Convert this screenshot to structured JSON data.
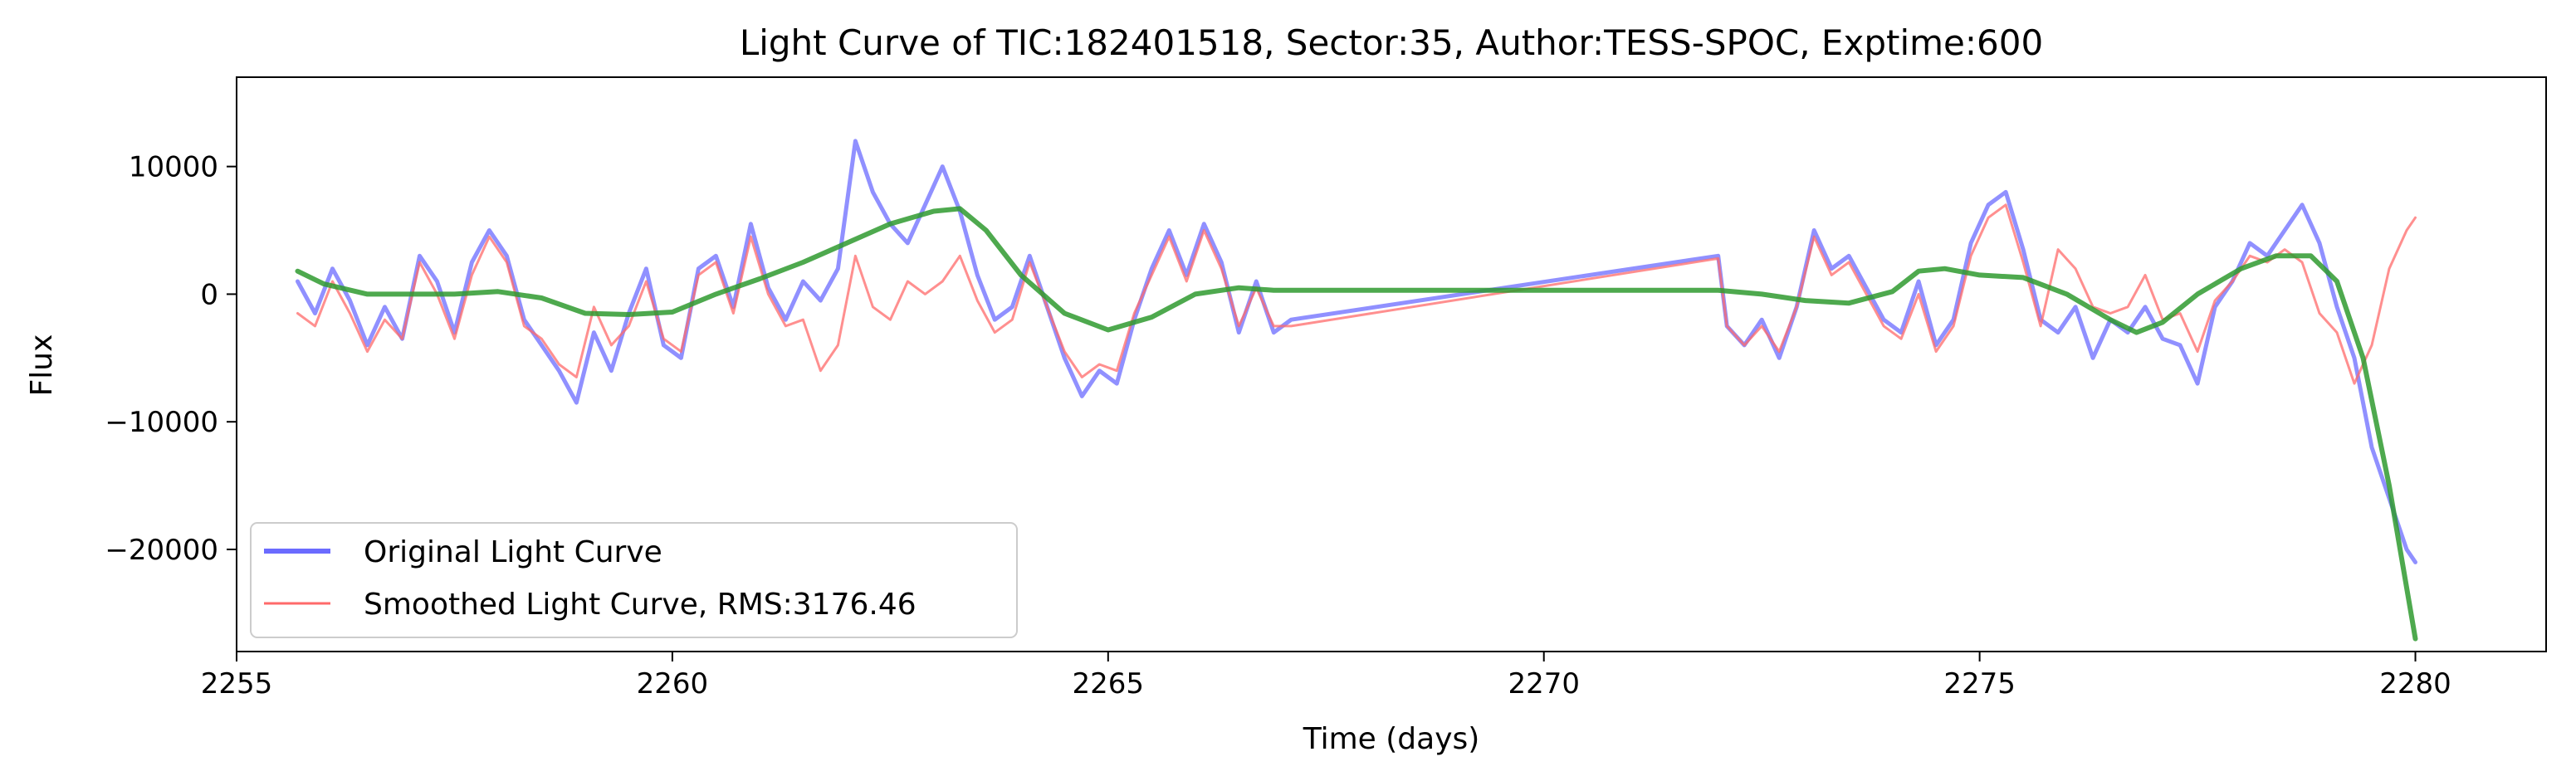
{
  "chart_data": {
    "type": "line",
    "title": "Light Curve of TIC:182401518, Sector:35, Author:TESS-SPOC, Exptime:600",
    "xlabel": "Time (days)",
    "ylabel": "Flux",
    "xlim": [
      2255.0,
      2281.5
    ],
    "ylim": [
      -28000,
      17000
    ],
    "xticks": [
      2255,
      2260,
      2265,
      2270,
      2275,
      2280
    ],
    "xtick_labels": [
      "2255",
      "2260",
      "2265",
      "2270",
      "2275",
      "2280"
    ],
    "yticks": [
      10000,
      0,
      -10000,
      -20000
    ],
    "ytick_labels": [
      "10000",
      "0",
      "−10000",
      "−20000"
    ],
    "grid": false,
    "legend": {
      "placement": "lower-left"
    },
    "series": [
      {
        "name": "Original Light Curve",
        "color": "#6b6bff",
        "x": [
          2255.7,
          2255.9,
          2256.1,
          2256.3,
          2256.5,
          2256.7,
          2256.9,
          2257.1,
          2257.3,
          2257.5,
          2257.7,
          2257.9,
          2258.1,
          2258.3,
          2258.5,
          2258.7,
          2258.9,
          2259.1,
          2259.3,
          2259.5,
          2259.7,
          2259.9,
          2260.1,
          2260.3,
          2260.5,
          2260.7,
          2260.9,
          2261.1,
          2261.3,
          2261.5,
          2261.7,
          2261.9,
          2262.1,
          2262.3,
          2262.5,
          2262.7,
          2262.9,
          2263.1,
          2263.3,
          2263.5,
          2263.7,
          2263.9,
          2264.1,
          2264.3,
          2264.5,
          2264.7,
          2264.9,
          2265.1,
          2265.3,
          2265.5,
          2265.7,
          2265.9,
          2266.1,
          2266.3,
          2266.5,
          2266.7,
          2266.9,
          2267.1,
          2272.0,
          2272.1,
          2272.3,
          2272.5,
          2272.7,
          2272.9,
          2273.1,
          2273.3,
          2273.5,
          2273.7,
          2273.9,
          2274.1,
          2274.3,
          2274.5,
          2274.7,
          2274.9,
          2275.1,
          2275.3,
          2275.5,
          2275.7,
          2275.9,
          2276.1,
          2276.3,
          2276.5,
          2276.7,
          2276.9,
          2277.1,
          2277.3,
          2277.5,
          2277.7,
          2277.9,
          2278.1,
          2278.3,
          2278.5,
          2278.7,
          2278.9,
          2279.1,
          2279.3,
          2279.5,
          2279.7,
          2279.9,
          2280.0
        ],
        "y": [
          1000,
          -1500,
          2000,
          -500,
          -4000,
          -1000,
          -3500,
          3000,
          1000,
          -3000,
          2500,
          5000,
          3000,
          -2000,
          -4000,
          -6000,
          -8500,
          -3000,
          -6000,
          -1500,
          2000,
          -4000,
          -5000,
          2000,
          3000,
          -1000,
          5500,
          500,
          -2000,
          1000,
          -500,
          2000,
          12000,
          8000,
          5500,
          4000,
          7000,
          10000,
          6500,
          1500,
          -2000,
          -1000,
          3000,
          -1000,
          -5000,
          -8000,
          -6000,
          -7000,
          -2000,
          2000,
          5000,
          1500,
          5500,
          2500,
          -3000,
          1000,
          -3000,
          -2000,
          3000,
          -2500,
          -4000,
          -2000,
          -5000,
          -1000,
          5000,
          2000,
          3000,
          500,
          -2000,
          -3000,
          1000,
          -4000,
          -2000,
          4000,
          7000,
          8000,
          3500,
          -2000,
          -3000,
          -1000,
          -5000,
          -2000,
          -3000,
          -1000,
          -3500,
          -4000,
          -7000,
          -1000,
          1000,
          4000,
          3000,
          5000,
          7000,
          4000,
          -1000,
          -5000,
          -12000,
          -16000,
          -20000,
          -21000
        ]
      },
      {
        "name": "Smoothed Light Curve, RMS:3176.46",
        "color": "#ff6a6a",
        "x": [
          2255.7,
          2255.9,
          2256.1,
          2256.3,
          2256.5,
          2256.7,
          2256.9,
          2257.1,
          2257.3,
          2257.5,
          2257.7,
          2257.9,
          2258.1,
          2258.3,
          2258.5,
          2258.7,
          2258.9,
          2259.1,
          2259.3,
          2259.5,
          2259.7,
          2259.9,
          2260.1,
          2260.3,
          2260.5,
          2260.7,
          2260.9,
          2261.1,
          2261.3,
          2261.5,
          2261.7,
          2261.9,
          2262.1,
          2262.3,
          2262.5,
          2262.7,
          2262.9,
          2263.1,
          2263.3,
          2263.5,
          2263.7,
          2263.9,
          2264.1,
          2264.3,
          2264.5,
          2264.7,
          2264.9,
          2265.1,
          2265.3,
          2265.5,
          2265.7,
          2265.9,
          2266.1,
          2266.3,
          2266.5,
          2266.7,
          2266.9,
          2267.1,
          2272.0,
          2272.1,
          2272.3,
          2272.5,
          2272.7,
          2272.9,
          2273.1,
          2273.3,
          2273.5,
          2273.7,
          2273.9,
          2274.1,
          2274.3,
          2274.5,
          2274.7,
          2274.9,
          2275.1,
          2275.3,
          2275.5,
          2275.7,
          2275.9,
          2276.1,
          2276.3,
          2276.5,
          2276.7,
          2276.9,
          2277.1,
          2277.3,
          2277.5,
          2277.7,
          2277.9,
          2278.1,
          2278.3,
          2278.5,
          2278.7,
          2278.9,
          2279.1,
          2279.3,
          2279.5,
          2279.7,
          2279.9,
          2280.0
        ],
        "y": [
          -1500,
          -2500,
          1000,
          -1500,
          -4500,
          -2000,
          -3500,
          2500,
          0,
          -3500,
          1500,
          4500,
          2500,
          -2500,
          -3500,
          -5500,
          -6500,
          -1000,
          -4000,
          -2500,
          1000,
          -3500,
          -4500,
          1500,
          2500,
          -1500,
          4500,
          0,
          -2500,
          -2000,
          -6000,
          -4000,
          3000,
          -1000,
          -2000,
          1000,
          0,
          1000,
          3000,
          -500,
          -3000,
          -2000,
          2500,
          -1000,
          -4500,
          -6500,
          -5500,
          -6000,
          -1500,
          1500,
          4500,
          1000,
          5000,
          2000,
          -2500,
          500,
          -2500,
          -2500,
          2800,
          -2500,
          -4000,
          -2500,
          -4500,
          -1000,
          4500,
          1500,
          2500,
          0,
          -2500,
          -3500,
          0,
          -4500,
          -2500,
          3000,
          6000,
          7000,
          2500,
          -2500,
          3500,
          2000,
          -1000,
          -1500,
          -1000,
          1500,
          -2000,
          -1500,
          -4500,
          -500,
          1000,
          3000,
          2500,
          3500,
          2500,
          -1500,
          -3000,
          -7000,
          -4000,
          2000,
          5000,
          6000
        ]
      },
      {
        "name": "",
        "color": "#2f9a2f",
        "x": [
          2255.7,
          2256.0,
          2256.5,
          2257.0,
          2257.5,
          2258.0,
          2258.5,
          2259.0,
          2259.5,
          2260.0,
          2260.5,
          2261.0,
          2261.5,
          2262.0,
          2262.5,
          2263.0,
          2263.3,
          2263.6,
          2264.0,
          2264.5,
          2265.0,
          2265.5,
          2266.0,
          2266.5,
          2266.9,
          2267.2,
          2268.0,
          2270.0,
          2272.0,
          2272.5,
          2273.0,
          2273.5,
          2274.0,
          2274.3,
          2274.6,
          2275.0,
          2275.5,
          2276.0,
          2276.5,
          2276.8,
          2277.1,
          2277.5,
          2278.0,
          2278.4,
          2278.8,
          2279.1,
          2279.4,
          2279.7,
          2280.0
        ],
        "y": [
          1800,
          800,
          0,
          0,
          0,
          200,
          -300,
          -1500,
          -1600,
          -1400,
          0,
          1200,
          2500,
          4000,
          5500,
          6500,
          6700,
          5000,
          1500,
          -1500,
          -2800,
          -1800,
          0,
          500,
          300,
          300,
          300,
          300,
          300,
          0,
          -500,
          -700,
          200,
          1800,
          2000,
          1500,
          1300,
          0,
          -2000,
          -3000,
          -2200,
          0,
          2000,
          3000,
          3000,
          1000,
          -5000,
          -15000,
          -27000
        ]
      }
    ]
  }
}
